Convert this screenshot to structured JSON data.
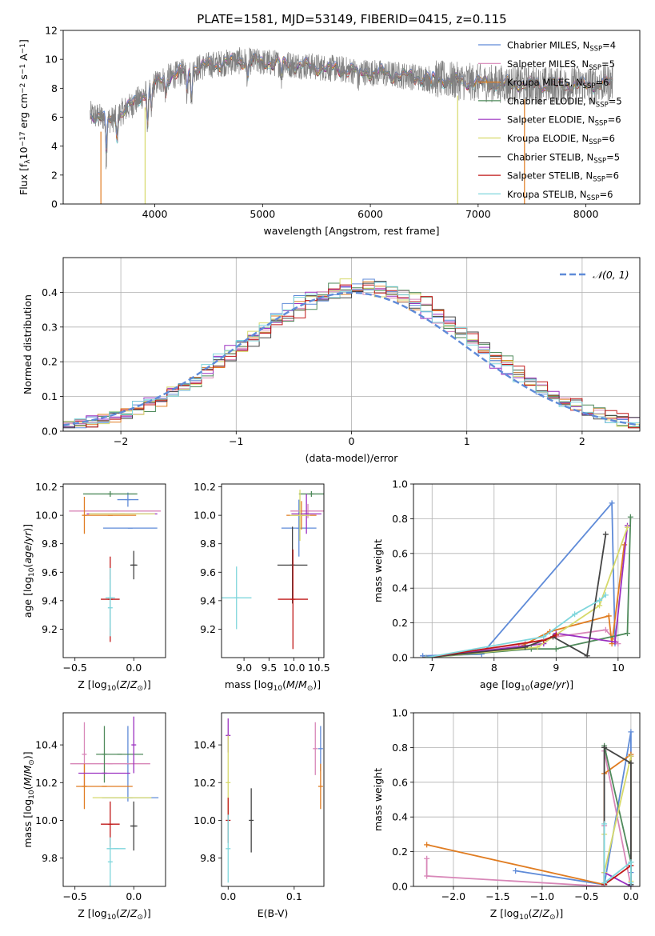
{
  "figure_title": "PLATE=1581, MJD=53149, FIBERID=0415, z=0.115",
  "colors": {
    "Chabrier MILES": "#5f8bd8",
    "Salpeter MILES": "#d887b8",
    "Kroupa MILES": "#e07c21",
    "Chabrier ELODIE": "#4f8a5b",
    "Salpeter ELODIE": "#9b30c0",
    "Kroupa ELODIE": "#d6d96a",
    "Chabrier STELIB": "#444444",
    "Salpeter STELIB": "#c01818",
    "Kroupa STELIB": "#7fd6dc",
    "data": "#808080",
    "normal": "#5f8bd8"
  },
  "chart_data": [
    {
      "id": "spectrum",
      "type": "line",
      "title": "PLATE=1581, MJD=53149, FIBERID=0415, z=0.115",
      "xlabel": "wavelength [Angstrom, rest frame]",
      "ylabel": "Flux [f_λ 10^-17 erg cm^-2 s^-1 A^-1]",
      "xlim": [
        3150,
        8500
      ],
      "ylim": [
        0,
        12
      ],
      "xticks": [
        "4000",
        "5000",
        "6000",
        "7000",
        "8000"
      ],
      "yticks": [
        "0",
        "2",
        "4",
        "6",
        "8",
        "10",
        "12"
      ],
      "legend_position": "right",
      "continuum": [
        [
          3400,
          6.2
        ],
        [
          3500,
          6.0
        ],
        [
          3600,
          5.8
        ],
        [
          3700,
          6.4
        ],
        [
          3800,
          6.9
        ],
        [
          3900,
          7.6
        ],
        [
          4000,
          8.3
        ],
        [
          4100,
          8.7
        ],
        [
          4300,
          9.2
        ],
        [
          4500,
          9.6
        ],
        [
          4800,
          9.9
        ],
        [
          5200,
          9.7
        ],
        [
          5600,
          9.4
        ],
        [
          6000,
          9.1
        ],
        [
          6400,
          8.8
        ],
        [
          6800,
          8.5
        ],
        [
          7200,
          8.3
        ],
        [
          7600,
          8.2
        ],
        [
          8000,
          8.2
        ],
        [
          8250,
          8.4
        ]
      ],
      "absorption_lines": [
        [
          3550,
          2.8
        ],
        [
          3650,
          1.5
        ],
        [
          3934,
          2.4
        ],
        [
          3968,
          2.0
        ],
        [
          4102,
          1.2
        ],
        [
          4300,
          1.6
        ],
        [
          4340,
          2.0
        ],
        [
          4861,
          1.3
        ],
        [
          5175,
          1.0
        ],
        [
          5890,
          0.8
        ],
        [
          6563,
          0.6
        ]
      ],
      "spikes": [
        {
          "name": "Kroupa MILES",
          "x": 3500
        },
        {
          "name": "Kroupa ELODIE",
          "x": 3910
        },
        {
          "name": "Kroupa ELODIE",
          "x": 6810
        },
        {
          "name": "Kroupa MILES",
          "x": 7430
        }
      ],
      "legend": [
        {
          "name": "Chabrier MILES",
          "label": "Chabrier MILES, N",
          "sub": "SSP",
          "n": "=4"
        },
        {
          "name": "Salpeter MILES",
          "label": "Salpeter MILES, N",
          "sub": "SSP",
          "n": "=5"
        },
        {
          "name": "Kroupa MILES",
          "label": "Kroupa MILES, N",
          "sub": "SSP",
          "n": "=6"
        },
        {
          "name": "Chabrier ELODIE",
          "label": "Chabrier ELODIE, N",
          "sub": "SSP",
          "n": "=5"
        },
        {
          "name": "Salpeter ELODIE",
          "label": "Salpeter ELODIE, N",
          "sub": "SSP",
          "n": "=6"
        },
        {
          "name": "Kroupa ELODIE",
          "label": "Kroupa ELODIE, N",
          "sub": "SSP",
          "n": "=6"
        },
        {
          "name": "Chabrier STELIB",
          "label": "Chabrier STELIB, N",
          "sub": "SSP",
          "n": "=5"
        },
        {
          "name": "Salpeter STELIB",
          "label": "Salpeter STELIB, N",
          "sub": "SSP",
          "n": "=6"
        },
        {
          "name": "Kroupa STELIB",
          "label": "Kroupa STELIB, N",
          "sub": "SSP",
          "n": "=6"
        }
      ]
    },
    {
      "id": "residuals",
      "type": "line",
      "xlabel": "(data-model)/error",
      "ylabel": "Normed distribution",
      "xlim": [
        -2.5,
        2.5
      ],
      "ylim": [
        0,
        0.5
      ],
      "grid": true,
      "xticks": [
        "-2",
        "-1",
        "0",
        "1",
        "2"
      ],
      "yticks": [
        "0.0",
        "0.1",
        "0.2",
        "0.3",
        "0.4"
      ],
      "legend": [
        {
          "name": "normal",
          "label": "N(0,1)"
        }
      ],
      "legend_position": "top-right",
      "bin_width": 0.1,
      "reference_curve": "normal distribution, mean 0, sigma 1"
    },
    {
      "id": "age_vs_Z",
      "type": "scatter",
      "xlabel": "Z [log10(Z/Z⊙)]",
      "ylabel": "age [log10(age/yr)]",
      "xlim": [
        -0.6,
        0.27
      ],
      "ylim": [
        9.0,
        10.22
      ],
      "xticks": [
        "-0.5",
        "0.0"
      ],
      "yticks": [
        "9.2",
        "9.4",
        "9.6",
        "9.8",
        "10.0",
        "10.2"
      ],
      "points": [
        {
          "name": "Chabrier MILES",
          "x": -0.05,
          "y": 10.11,
          "xerr": 0.09,
          "yerr": 0.05
        },
        {
          "name": "Chabrier MILES",
          "x": -0.03,
          "y": 9.91,
          "xerr": 0.23,
          "yerr": 0.0
        },
        {
          "name": "Salpeter MILES",
          "x": -0.16,
          "y": 10.03,
          "xerr": 0.39,
          "yerr": 0.0
        },
        {
          "name": "Kroupa MILES",
          "x": -0.42,
          "y": 10.0,
          "xerr": 0.0,
          "yerr": 0.13
        },
        {
          "name": "Kroupa MILES",
          "x": -0.2,
          "y": 10.0,
          "xerr": 0.22,
          "yerr": 0.0
        },
        {
          "name": "Chabrier ELODIE",
          "x": -0.2,
          "y": 10.15,
          "xerr": 0.23,
          "yerr": 0.02
        },
        {
          "name": "Salpeter ELODIE",
          "x": -0.1,
          "y": 10.01,
          "xerr": 0.3,
          "yerr": 0.0
        },
        {
          "name": "Kroupa ELODIE",
          "x": -0.1,
          "y": 10.01,
          "xerr": 0.28,
          "yerr": 0.0
        },
        {
          "name": "Chabrier STELIB",
          "x": 0.0,
          "y": 9.65,
          "xerr": 0.03,
          "yerr": 0.1
        },
        {
          "name": "Salpeter STELIB",
          "x": -0.2,
          "y": 9.41,
          "xerr": 0.08,
          "yerr": 0.3
        },
        {
          "name": "Kroupa STELIB",
          "x": -0.2,
          "y": 9.42,
          "xerr": 0.04,
          "yerr": 0.21
        },
        {
          "name": "Kroupa STELIB",
          "x": -0.2,
          "y": 9.35,
          "xerr": 0.0,
          "yerr": 0.2
        }
      ]
    },
    {
      "id": "age_vs_mass",
      "type": "scatter",
      "xlabel": "mass [log10(M/M⊙)]",
      "ylabel": "",
      "xlim": [
        8.55,
        10.6
      ],
      "ylim": [
        9.0,
        10.22
      ],
      "xticks": [
        "9.0",
        "9.5",
        "10.0",
        "10.5"
      ],
      "yticks": [
        "9.2",
        "9.4",
        "9.6",
        "9.8",
        "10.0",
        "10.2"
      ],
      "points": [
        {
          "name": "Chabrier MILES",
          "x": 10.1,
          "y": 9.91,
          "xerr": 0.35,
          "yerr": 0.2
        },
        {
          "name": "Salpeter MILES",
          "x": 10.28,
          "y": 10.03,
          "xerr": 0.35,
          "yerr": 0.05
        },
        {
          "name": "Kroupa MILES",
          "x": 10.15,
          "y": 10.0,
          "xerr": 0.3,
          "yerr": 0.1
        },
        {
          "name": "Chabrier ELODIE",
          "x": 10.35,
          "y": 10.15,
          "xerr": 0.25,
          "yerr": 0.02
        },
        {
          "name": "Salpeter ELODIE",
          "x": 10.25,
          "y": 10.01,
          "xerr": 0.3,
          "yerr": 0.14
        },
        {
          "name": "Kroupa ELODIE",
          "x": 10.12,
          "y": 10.0,
          "xerr": 0.2,
          "yerr": 0.18
        },
        {
          "name": "Chabrier STELIB",
          "x": 9.97,
          "y": 9.65,
          "xerr": 0.3,
          "yerr": 0.27
        },
        {
          "name": "Salpeter STELIB",
          "x": 9.98,
          "y": 9.41,
          "xerr": 0.3,
          "yerr": 0.35
        },
        {
          "name": "Kroupa STELIB",
          "x": 8.85,
          "y": 9.42,
          "xerr": 0.3,
          "yerr": 0.22
        }
      ]
    },
    {
      "id": "mass_weight_vs_age",
      "type": "line",
      "xlabel": "age [log10(age/yr)]",
      "ylabel": "mass weight",
      "xlim": [
        6.7,
        10.35
      ],
      "ylim": [
        0,
        1.0
      ],
      "grid": true,
      "xticks": [
        "7",
        "8",
        "9",
        "10"
      ],
      "yticks": [
        "0.0",
        "0.2",
        "0.4",
        "0.6",
        "0.8",
        "1.0"
      ],
      "series": [
        {
          "name": "Chabrier MILES",
          "x": [
            6.85,
            7.8,
            9.9,
            9.95
          ],
          "y": [
            0.01,
            0.02,
            0.89,
            0.08
          ]
        },
        {
          "name": "Salpeter MILES",
          "x": [
            6.9,
            8.5,
            9.0,
            9.8,
            10.0
          ],
          "y": [
            0.0,
            0.08,
            0.12,
            0.16,
            0.08
          ]
        },
        {
          "name": "Kroupa MILES",
          "x": [
            6.9,
            8.4,
            8.9,
            9.85,
            9.9,
            10.1
          ],
          "y": [
            0.0,
            0.06,
            0.15,
            0.24,
            0.08,
            0.65
          ]
        },
        {
          "name": "Chabrier ELODIE",
          "x": [
            6.9,
            8.6,
            9.0,
            10.15,
            10.2
          ],
          "y": [
            0.0,
            0.05,
            0.05,
            0.14,
            0.81
          ]
        },
        {
          "name": "Salpeter ELODIE",
          "x": [
            6.9,
            8.8,
            9.0,
            9.95,
            10.15
          ],
          "y": [
            0.0,
            0.08,
            0.14,
            0.09,
            0.76
          ]
        },
        {
          "name": "Kroupa ELODIE",
          "x": [
            6.9,
            8.7,
            9.7,
            10.15
          ],
          "y": [
            0.0,
            0.06,
            0.3,
            0.75
          ]
        },
        {
          "name": "Chabrier STELIB",
          "x": [
            6.9,
            8.5,
            8.95,
            9.5,
            9.8
          ],
          "y": [
            0.0,
            0.06,
            0.12,
            0.01,
            0.71
          ]
        },
        {
          "name": "Salpeter STELIB",
          "x": [
            6.9,
            8.8,
            9.0
          ],
          "y": [
            0.0,
            0.1,
            0.13
          ]
        },
        {
          "name": "Kroupa STELIB",
          "x": [
            6.9,
            8.8,
            9.3,
            9.7,
            9.8
          ],
          "y": [
            0.0,
            0.12,
            0.25,
            0.33,
            0.36
          ]
        }
      ]
    },
    {
      "id": "mass_vs_Z",
      "type": "scatter",
      "xlabel": "Z [log10(Z/Z⊙)]",
      "ylabel": "mass [log10(M/M⊙)]",
      "xlim": [
        -0.6,
        0.27
      ],
      "ylim": [
        9.65,
        10.57
      ],
      "xticks": [
        "-0.5",
        "0.0"
      ],
      "yticks": [
        "9.8",
        "10.0",
        "10.2",
        "10.4"
      ],
      "points": [
        {
          "name": "Chabrier MILES",
          "x": -0.03,
          "y": 10.12,
          "xerr": 0.24,
          "yerr": 0.0
        },
        {
          "name": "Chabrier MILES",
          "x": -0.05,
          "y": 10.3,
          "xerr": 0.0,
          "yerr": 0.2
        },
        {
          "name": "Salpeter MILES",
          "x": -0.2,
          "y": 10.3,
          "xerr": 0.34,
          "yerr": 0.0
        },
        {
          "name": "Salpeter MILES",
          "x": -0.42,
          "y": 10.35,
          "xerr": 0.0,
          "yerr": 0.17
        },
        {
          "name": "Kroupa MILES",
          "x": -0.25,
          "y": 10.18,
          "xerr": 0.24,
          "yerr": 0.0
        },
        {
          "name": "Kroupa MILES",
          "x": -0.42,
          "y": 10.18,
          "xerr": 0.0,
          "yerr": 0.12
        },
        {
          "name": "Chabrier ELODIE",
          "x": -0.12,
          "y": 10.35,
          "xerr": 0.2,
          "yerr": 0.0
        },
        {
          "name": "Chabrier ELODIE",
          "x": -0.25,
          "y": 10.35,
          "xerr": 0.0,
          "yerr": 0.15
        },
        {
          "name": "Salpeter ELODIE",
          "x": -0.25,
          "y": 10.25,
          "xerr": 0.22,
          "yerr": 0.0
        },
        {
          "name": "Salpeter ELODIE",
          "x": 0.0,
          "y": 10.4,
          "xerr": 0.0,
          "yerr": 0.15
        },
        {
          "name": "Kroupa ELODIE",
          "x": -0.1,
          "y": 10.12,
          "xerr": 0.25,
          "yerr": 0.0
        },
        {
          "name": "Chabrier STELIB",
          "x": 0.0,
          "y": 9.97,
          "xerr": 0.03,
          "yerr": 0.13
        },
        {
          "name": "Salpeter STELIB",
          "x": -0.2,
          "y": 9.98,
          "xerr": 0.08,
          "yerr": 0.12
        },
        {
          "name": "Kroupa STELIB",
          "x": -0.15,
          "y": 9.85,
          "xerr": 0.08,
          "yerr": 0.0
        },
        {
          "name": "Kroupa STELIB",
          "x": -0.2,
          "y": 9.78,
          "xerr": 0.0,
          "yerr": 0.13
        }
      ]
    },
    {
      "id": "mass_vs_ebv",
      "type": "scatter",
      "xlabel": "E(B-V)",
      "ylabel": "",
      "xlim": [
        -0.01,
        0.145
      ],
      "ylim": [
        9.65,
        10.57
      ],
      "xticks": [
        "0.0",
        "0.1"
      ],
      "yticks": [
        "9.8",
        "10.0",
        "10.2",
        "10.4"
      ],
      "points": [
        {
          "name": "Chabrier MILES",
          "x": 0.14,
          "y": 10.38,
          "xerr": 0.0,
          "yerr": 0.12
        },
        {
          "name": "Salpeter MILES",
          "x": 0.132,
          "y": 10.38,
          "xerr": 0.0,
          "yerr": 0.14
        },
        {
          "name": "Kroupa MILES",
          "x": 0.14,
          "y": 10.18,
          "xerr": 0.0,
          "yerr": 0.12
        },
        {
          "name": "Salpeter ELODIE",
          "x": 0.0,
          "y": 10.45,
          "xerr": 0.0,
          "yerr": 0.09
        },
        {
          "name": "Kroupa ELODIE",
          "x": 0.0,
          "y": 10.2,
          "xerr": 0.0,
          "yerr": 0.25
        },
        {
          "name": "Chabrier STELIB",
          "x": 0.035,
          "y": 10.0,
          "xerr": 0.0,
          "yerr": 0.17
        },
        {
          "name": "Salpeter STELIB",
          "x": 0.0,
          "y": 10.0,
          "xerr": 0.0,
          "yerr": 0.12
        },
        {
          "name": "Kroupa STELIB",
          "x": 0.0,
          "y": 9.85,
          "xerr": 0.0,
          "yerr": 0.18
        }
      ]
    },
    {
      "id": "mass_weight_vs_Z",
      "type": "line",
      "xlabel": "Z [log10(Z/Z⊙)]",
      "ylabel": "mass weight",
      "xlim": [
        -2.45,
        0.1
      ],
      "ylim": [
        0,
        1.0
      ],
      "grid": true,
      "xticks": [
        "-2.0",
        "-1.5",
        "-1.0",
        "-0.5",
        "0.0"
      ],
      "yticks": [
        "0.0",
        "0.2",
        "0.4",
        "0.6",
        "0.8",
        "1.0"
      ],
      "series": [
        {
          "name": "Chabrier MILES",
          "x": [
            -1.3,
            -0.3,
            0.0,
            0.0
          ],
          "y": [
            0.09,
            0.01,
            0.89,
            0.08
          ]
        },
        {
          "name": "Salpeter MILES",
          "x": [
            -2.3,
            -2.3,
            -0.3,
            -0.3,
            -0.3,
            0.0
          ],
          "y": [
            0.16,
            0.06,
            0.0,
            0.35,
            0.78,
            0.0
          ]
        },
        {
          "name": "Kroupa MILES",
          "x": [
            -2.3,
            -0.3,
            -0.3,
            0.0
          ],
          "y": [
            0.24,
            0.01,
            0.65,
            0.76
          ]
        },
        {
          "name": "Chabrier ELODIE",
          "x": [
            -0.3,
            0.0,
            0.0
          ],
          "y": [
            0.81,
            0.14,
            0.0
          ]
        },
        {
          "name": "Salpeter ELODIE",
          "x": [
            -0.3,
            0.0,
            0.0
          ],
          "y": [
            0.08,
            0.0,
            0.75
          ]
        },
        {
          "name": "Kroupa ELODIE",
          "x": [
            -0.3,
            -0.3,
            0.0,
            0.0
          ],
          "y": [
            0.3,
            0.08,
            0.75,
            0.03
          ]
        },
        {
          "name": "Chabrier STELIB",
          "x": [
            -0.3,
            -0.3,
            0.0,
            0.0
          ],
          "y": [
            0.01,
            0.8,
            0.71,
            0.01
          ]
        },
        {
          "name": "Salpeter STELIB",
          "x": [
            -0.3,
            0.0
          ],
          "y": [
            0.01,
            0.12
          ]
        },
        {
          "name": "Kroupa STELIB",
          "x": [
            -0.3,
            -0.3,
            0.0,
            0.0
          ],
          "y": [
            0.36,
            0.02,
            0.14,
            0.02
          ]
        }
      ]
    }
  ]
}
